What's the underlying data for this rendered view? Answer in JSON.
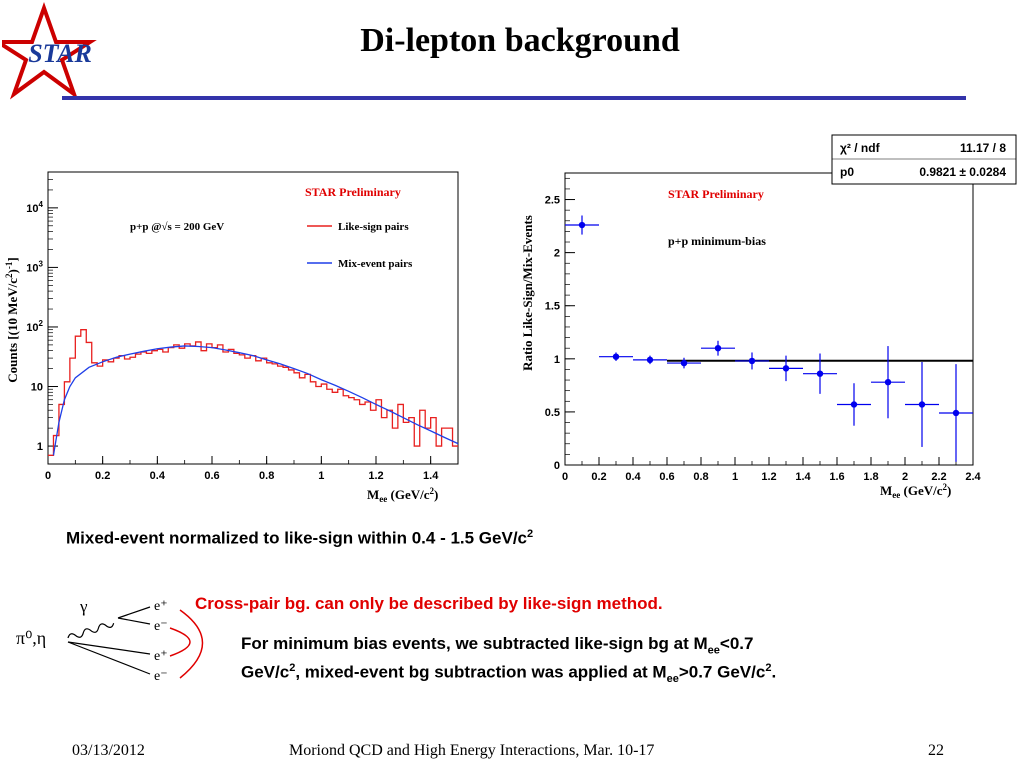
{
  "slide": {
    "title": "Di-lepton background",
    "logo_text": "STAR",
    "colors": {
      "title_rule": "#3333aa",
      "red_text": "#e00000",
      "star_red": "#cc0000",
      "star_blue": "#1a3a9a"
    }
  },
  "notes": {
    "normalization_pre": "Mixed-event normalized to like-sign within 0.4 - 1.5 GeV/c",
    "normalization_sup": "2",
    "cross_pair": "Cross-pair bg. can only be described by like-sign method.",
    "minbias_a": "For minimum bias events, we subtracted like-sign bg at M",
    "minbias_sub1": "ee",
    "minbias_b": "<0.7",
    "minbias_c": "GeV/c",
    "minbias_sup1": "2",
    "minbias_d": ", mixed-event bg subtraction was applied at M",
    "minbias_sub2": "ee",
    "minbias_e": ">0.7 GeV/c",
    "minbias_sup2": "2",
    "minbias_f": "."
  },
  "diagram": {
    "source": "π⁰,η",
    "gamma": "γ",
    "leptons": [
      "e⁺",
      "e⁻",
      "e⁺",
      "e⁻"
    ]
  },
  "footer": {
    "date": "03/13/2012",
    "conference": "Moriond QCD and High Energy Interactions, Mar. 10-17",
    "page": "22"
  },
  "chart_data": [
    {
      "type": "line",
      "log_y": true,
      "xlabel": "M_ee (GeV/c^2)",
      "ylabel": "Counts [(10 MeV/c^2)^-1]",
      "xlim": [
        0,
        1.5
      ],
      "ylim": [
        0.5,
        40000
      ],
      "x_ticks": [
        "0",
        "0.2",
        "0.4",
        "0.6",
        "0.8",
        "1",
        "1.2",
        "1.4"
      ],
      "y_ticks": [
        "1",
        "10",
        "10^2",
        "10^3",
        "10^4"
      ],
      "annotations": [
        "STAR Preliminary",
        "p+p @√s = 200 GeV"
      ],
      "series": [
        {
          "name": "Like-sign pairs",
          "color": "#e8201f",
          "step": true,
          "x": [
            0.0,
            0.02,
            0.04,
            0.06,
            0.08,
            0.1,
            0.12,
            0.14,
            0.16,
            0.18,
            0.2,
            0.22,
            0.24,
            0.26,
            0.28,
            0.3,
            0.32,
            0.34,
            0.36,
            0.38,
            0.4,
            0.42,
            0.44,
            0.46,
            0.48,
            0.5,
            0.52,
            0.54,
            0.56,
            0.58,
            0.6,
            0.62,
            0.64,
            0.66,
            0.68,
            0.7,
            0.72,
            0.74,
            0.76,
            0.78,
            0.8,
            0.82,
            0.84,
            0.86,
            0.88,
            0.9,
            0.92,
            0.94,
            0.96,
            0.98,
            1.0,
            1.02,
            1.04,
            1.06,
            1.08,
            1.1,
            1.12,
            1.14,
            1.16,
            1.18,
            1.2,
            1.22,
            1.24,
            1.26,
            1.28,
            1.3,
            1.32,
            1.34,
            1.36,
            1.38,
            1.4,
            1.42,
            1.44,
            1.46,
            1.48
          ],
          "y": [
            0.7,
            1.5,
            5,
            12,
            30,
            70,
            90,
            55,
            25,
            22,
            28,
            26,
            30,
            33,
            29,
            31,
            35,
            38,
            36,
            40,
            42,
            38,
            45,
            50,
            44,
            52,
            48,
            56,
            40,
            52,
            45,
            50,
            38,
            42,
            36,
            34,
            30,
            33,
            27,
            30,
            25,
            24,
            22,
            21,
            19,
            17,
            14,
            16,
            12,
            10,
            11,
            9,
            8,
            9,
            7,
            6.5,
            6,
            5,
            5.5,
            4,
            6,
            3,
            4,
            2,
            5,
            2.5,
            3,
            1,
            4,
            2,
            3,
            1,
            2,
            2,
            1
          ]
        },
        {
          "name": "Mix-event pairs",
          "color": "#1f3fe8",
          "step": false,
          "x": [
            0.02,
            0.04,
            0.06,
            0.08,
            0.1,
            0.15,
            0.2,
            0.25,
            0.3,
            0.35,
            0.4,
            0.45,
            0.5,
            0.55,
            0.6,
            0.65,
            0.7,
            0.75,
            0.8,
            0.85,
            0.9,
            0.95,
            1.0,
            1.05,
            1.1,
            1.15,
            1.2,
            1.25,
            1.3,
            1.35,
            1.4,
            1.45,
            1.5
          ],
          "y": [
            0.7,
            2.5,
            6,
            10,
            14,
            21,
            26,
            31,
            35,
            39,
            43,
            46,
            48,
            47,
            45,
            41,
            37,
            33,
            28,
            24,
            20,
            16.5,
            13,
            10.5,
            8.3,
            6.5,
            5,
            3.9,
            3,
            2.3,
            1.8,
            1.4,
            1.1
          ]
        }
      ]
    },
    {
      "type": "scatter",
      "xlabel": "M_ee (GeV/c^2)",
      "ylabel": "Ratio Like-Sign/Mix-Events",
      "xlim": [
        0,
        2.4
      ],
      "ylim": [
        0,
        2.75
      ],
      "x_ticks": [
        "0",
        "0.2",
        "0.4",
        "0.6",
        "0.8",
        "1",
        "1.2",
        "1.4",
        "1.6",
        "1.8",
        "2",
        "2.2",
        "2.4"
      ],
      "y_ticks": [
        "0",
        "0.5",
        "1",
        "1.5",
        "2",
        "2.5"
      ],
      "annotations": [
        "STAR Preliminary",
        "p+p minimum-bias"
      ],
      "fit_box": {
        "rows": [
          {
            "label": "χ² / ndf",
            "value": "11.17 / 8"
          },
          {
            "label": "p0",
            "value": "0.9821 ± 0.0284"
          }
        ]
      },
      "fit_line": {
        "y": 0.9821,
        "x_range": [
          0.6,
          2.4
        ],
        "color": "#000000"
      },
      "series": [
        {
          "color": "#0000ee",
          "x": [
            0.1,
            0.3,
            0.5,
            0.7,
            0.9,
            1.1,
            1.3,
            1.5,
            1.7,
            1.9,
            2.1,
            2.3
          ],
          "y": [
            2.26,
            1.02,
            0.99,
            0.96,
            1.1,
            0.98,
            0.91,
            0.86,
            0.57,
            0.78,
            0.57,
            0.49
          ],
          "yerr": [
            0.09,
            0.04,
            0.04,
            0.05,
            0.07,
            0.08,
            0.12,
            0.19,
            0.2,
            0.34,
            0.4,
            0.46
          ],
          "xerr": 0.1
        }
      ]
    }
  ]
}
